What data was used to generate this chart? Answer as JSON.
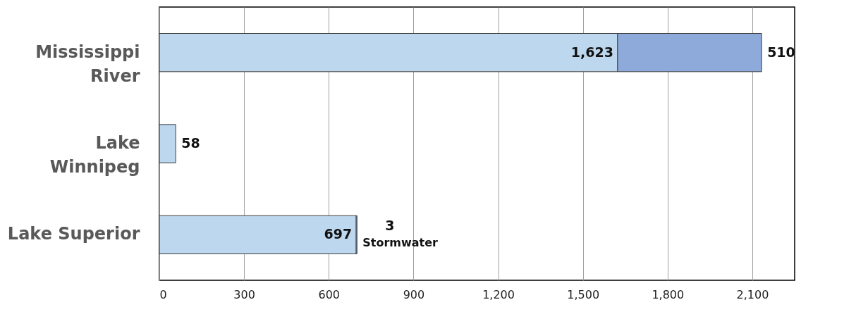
{
  "chart_data": {
    "type": "bar",
    "orientation": "horizontal",
    "stacked": true,
    "categories": [
      "Mississippi\nRiver",
      "Lake\nWinnipeg",
      "Lake Superior"
    ],
    "series": [
      {
        "color": "#bdd7ee",
        "values": [
          1623,
          58,
          697
        ],
        "value_labels": [
          "1,623",
          "58",
          "697"
        ]
      },
      {
        "color": "#8eaadb",
        "values": [
          510,
          null,
          3
        ],
        "value_labels": [
          "510",
          null,
          "3"
        ]
      }
    ],
    "xlim": [
      0,
      2250
    ],
    "xticks": [
      0,
      300,
      600,
      900,
      {
        "value": 1200,
        "label": "1,200"
      },
      {
        "value": 1500,
        "label": "1,500"
      },
      {
        "value": 1800,
        "label": "1,800"
      },
      {
        "value": 2100,
        "label": "2,100"
      }
    ],
    "grid": "x",
    "annotations": [
      {
        "text": "Stormwater",
        "x": 700,
        "y": "Lake Superior"
      }
    ]
  }
}
